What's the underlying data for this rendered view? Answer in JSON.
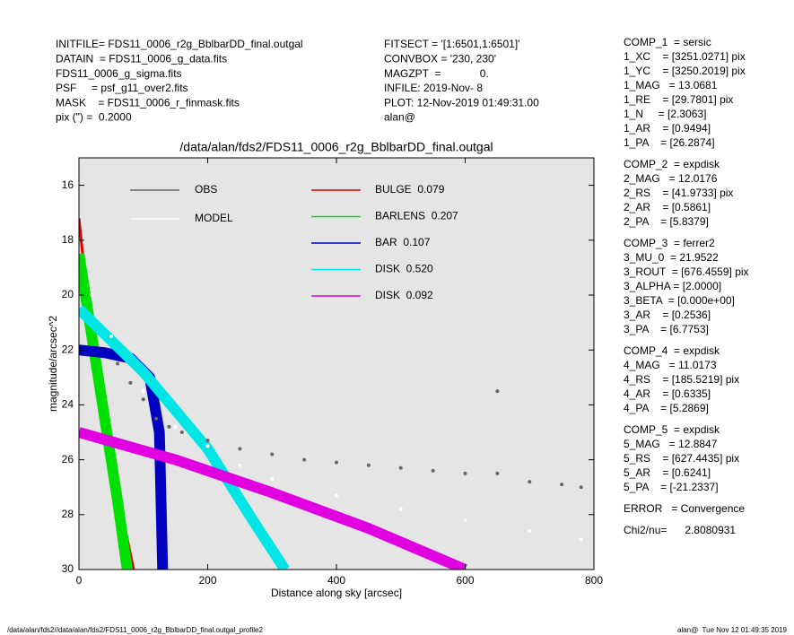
{
  "header_left": [
    "INITFILE= FDS11_0006_r2g_BblbarDD_final.outgal",
    "DATAIN  = FDS11_0006_g_data.fits",
    "FDS11_0006_g_sigma.fits",
    "PSF     = psf_g11_over2.fits",
    "MASK    = FDS11_0006_r_finmask.fits",
    "pix (\") =  0.2000"
  ],
  "header_mid": [
    "FITSECT = '[1:6501,1:6501]'",
    "CONVBOX = '230, 230'",
    "MAGZPT  =             0.",
    "INFILE: 2019-Nov- 8",
    "PLOT: 12-Nov-2019 01:49:31.00",
    "alan@"
  ],
  "params": [
    [
      "COMP_1  = sersic",
      "1_XC    = [3251.0271] pix",
      "1_YC    = [3250.2019] pix",
      "1_MAG   = 13.0681",
      "1_RE    = [29.7801] pix",
      "1_N     = [2.3063]",
      "1_AR    = [0.9494]",
      "1_PA    = [26.2874]"
    ],
    [
      "COMP_2  = expdisk",
      "2_MAG   = 12.0176",
      "2_RS    = [41.9733] pix",
      "2_AR    = [0.5861]",
      "2_PA    = [5.8379]"
    ],
    [
      "COMP_3  = ferrer2",
      "3_MU_0  = 21.9522",
      "3_ROUT  = [676.4559] pix",
      "3_ALPHA = [2.0000]",
      "3_BETA  = [0.000e+00]",
      "3_AR    = [0.2536]",
      "3_PA    = [6.7753]"
    ],
    [
      "COMP_4  = expdisk",
      "4_MAG   = 11.0173",
      "4_RS    = [185.5219] pix",
      "4_AR    = [0.6335]",
      "4_PA    = [5.2869]"
    ],
    [
      "COMP_5  = expdisk",
      "5_MAG   = 12.8847",
      "5_RS    = [627.4435] pix",
      "5_AR    = [0.6241]",
      "5_PA    = [-21.2337]"
    ],
    [
      "ERROR   = Convergence"
    ],
    [
      "Chi2/nu=      2.8080931"
    ]
  ],
  "footer_left": "/data/alan/fds2//data/alan/fds2/FDS11_0006_r2g_BblbarDD_final.outgal_profile2",
  "footer_right": "alan@  Tue Nov 12 01:49:35 2019",
  "chart_data": {
    "type": "scatter",
    "title": "/data/alan/fds2/FDS11_0006_r2g_BblbarDD_final.outgal",
    "x_label": "Distance along sky [arcsec]",
    "y_label": "magnitude/arcsec^2",
    "xlim": [
      0,
      800
    ],
    "xticks": [
      0,
      200,
      400,
      600,
      800
    ],
    "ylim": [
      30,
      15
    ],
    "yticks": [
      16,
      18,
      20,
      22,
      24,
      26,
      28,
      30
    ],
    "background": "#e5e5e5",
    "points": [
      {
        "name": "OBS",
        "color": "#666666",
        "x": [
          60,
          80,
          100,
          120,
          140,
          160,
          200,
          250,
          300,
          350,
          400,
          450,
          500,
          550,
          600,
          650,
          650,
          700,
          750,
          780
        ],
        "y": [
          22.5,
          23.2,
          23.8,
          24.5,
          24.8,
          25.0,
          25.3,
          25.6,
          25.8,
          26.0,
          26.1,
          26.2,
          26.3,
          26.4,
          26.5,
          23.5,
          26.5,
          26.8,
          26.9,
          27.0
        ]
      },
      {
        "name": "MODEL",
        "color": "#ffffff",
        "x": [
          20,
          50,
          100,
          150,
          200,
          250,
          300,
          400,
          500,
          600,
          700,
          780
        ],
        "y": [
          20,
          21.5,
          23.5,
          24.8,
          25.5,
          26.2,
          26.7,
          27.3,
          27.8,
          28.2,
          28.6,
          28.9
        ]
      }
    ],
    "series": [
      {
        "name": "BULGE  0.079",
        "color": "#e00000",
        "x": [
          0,
          10,
          20,
          40,
          60,
          85
        ],
        "y": [
          17.2,
          19.5,
          21.3,
          24.5,
          27.2,
          30
        ]
      },
      {
        "name": "BARLENS  0.207",
        "color": "#00e000",
        "x": [
          0,
          20,
          40,
          60,
          75
        ],
        "y": [
          18.5,
          21.5,
          24.5,
          27.5,
          30
        ]
      },
      {
        "name": "BAR  0.107",
        "color": "#0000c0",
        "x": [
          0,
          40,
          80,
          110,
          125,
          130
        ],
        "y": [
          22,
          22.1,
          22.3,
          23,
          25,
          30
        ]
      },
      {
        "name": "DISK  0.520",
        "color": "#00e5e5",
        "x": [
          0,
          100,
          200,
          270,
          320
        ],
        "y": [
          20.5,
          22.8,
          25.6,
          28.2,
          30
        ]
      },
      {
        "name": "DISK  0.092",
        "color": "#e000e0",
        "x": [
          0,
          150,
          300,
          450,
          600
        ],
        "y": [
          25,
          26,
          27.2,
          28.5,
          30
        ]
      }
    ]
  }
}
